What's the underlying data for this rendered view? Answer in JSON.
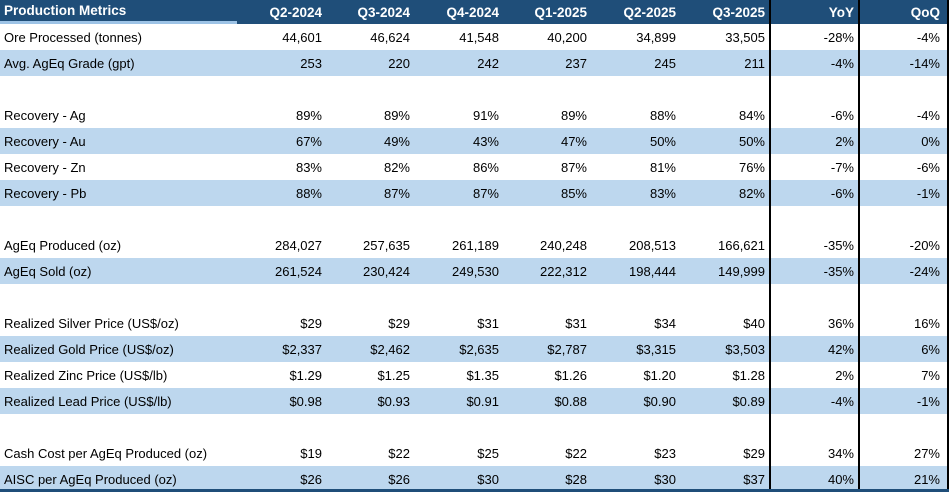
{
  "colors": {
    "header_bg": "#1F4E79",
    "header_text": "#FFFFFF",
    "band_fill": "#BDD7EE",
    "title_underline": "#9DC3E6",
    "divider": "#000000",
    "bottom_border": "#1F4E79"
  },
  "table": {
    "title": "Production Metrics",
    "columns": [
      "Q2-2024",
      "Q3-2024",
      "Q4-2024",
      "Q1-2025",
      "Q2-2025",
      "Q3-2025",
      "YoY",
      "QoQ"
    ],
    "rows": [
      {
        "label": "Ore Processed (tonnes)",
        "values": [
          "44,601",
          "46,624",
          "41,548",
          "40,200",
          "34,899",
          "33,505",
          "-28%",
          "-4%"
        ]
      },
      {
        "label": "Avg. AgEq Grade (gpt)",
        "values": [
          "253",
          "220",
          "242",
          "237",
          "245",
          "211",
          "-4%",
          "-14%"
        ]
      },
      {
        "label": "",
        "values": [
          "",
          "",
          "",
          "",
          "",
          "",
          "",
          ""
        ]
      },
      {
        "label": "Recovery - Ag",
        "values": [
          "89%",
          "89%",
          "91%",
          "89%",
          "88%",
          "84%",
          "-6%",
          "-4%"
        ]
      },
      {
        "label": "Recovery - Au",
        "values": [
          "67%",
          "49%",
          "43%",
          "47%",
          "50%",
          "50%",
          "2%",
          "0%"
        ]
      },
      {
        "label": "Recovery - Zn",
        "values": [
          "83%",
          "82%",
          "86%",
          "87%",
          "81%",
          "76%",
          "-7%",
          "-6%"
        ]
      },
      {
        "label": "Recovery - Pb",
        "values": [
          "88%",
          "87%",
          "87%",
          "85%",
          "83%",
          "82%",
          "-6%",
          "-1%"
        ]
      },
      {
        "label": "",
        "values": [
          "",
          "",
          "",
          "",
          "",
          "",
          "",
          ""
        ]
      },
      {
        "label": "AgEq Produced (oz)",
        "values": [
          "284,027",
          "257,635",
          "261,189",
          "240,248",
          "208,513",
          "166,621",
          "-35%",
          "-20%"
        ]
      },
      {
        "label": "AgEq Sold (oz)",
        "values": [
          "261,524",
          "230,424",
          "249,530",
          "222,312",
          "198,444",
          "149,999",
          "-35%",
          "-24%"
        ]
      },
      {
        "label": "",
        "values": [
          "",
          "",
          "",
          "",
          "",
          "",
          "",
          ""
        ]
      },
      {
        "label": "Realized Silver Price (US$/oz)",
        "values": [
          "$29",
          "$29",
          "$31",
          "$31",
          "$34",
          "$40",
          "36%",
          "16%"
        ]
      },
      {
        "label": "Realized Gold Price (US$/oz)",
        "values": [
          "$2,337",
          "$2,462",
          "$2,635",
          "$2,787",
          "$3,315",
          "$3,503",
          "42%",
          "6%"
        ]
      },
      {
        "label": "Realized Zinc Price (US$/lb)",
        "values": [
          "$1.29",
          "$1.25",
          "$1.35",
          "$1.26",
          "$1.20",
          "$1.28",
          "2%",
          "7%"
        ]
      },
      {
        "label": "Realized Lead Price (US$/lb)",
        "values": [
          "$0.98",
          "$0.93",
          "$0.91",
          "$0.88",
          "$0.90",
          "$0.89",
          "-4%",
          "-1%"
        ]
      },
      {
        "label": "",
        "values": [
          "",
          "",
          "",
          "",
          "",
          "",
          "",
          ""
        ]
      },
      {
        "label": "Cash Cost per AgEq Produced (oz)",
        "values": [
          "$19",
          "$22",
          "$25",
          "$22",
          "$23",
          "$29",
          "34%",
          "27%"
        ]
      },
      {
        "label": "AISC per AgEq Produced (oz)",
        "values": [
          "$26",
          "$26",
          "$30",
          "$28",
          "$30",
          "$37",
          "40%",
          "21%"
        ]
      }
    ]
  },
  "chart_data": {
    "type": "table",
    "title": "Production Metrics",
    "categories": [
      "Q2-2024",
      "Q3-2024",
      "Q4-2024",
      "Q1-2025",
      "Q2-2025",
      "Q3-2025"
    ],
    "series": [
      {
        "name": "Ore Processed (tonnes)",
        "values": [
          44601,
          46624,
          41548,
          40200,
          34899,
          33505
        ],
        "yoy_pct": -28,
        "qoq_pct": -4
      },
      {
        "name": "Avg. AgEq Grade (gpt)",
        "values": [
          253,
          220,
          242,
          237,
          245,
          211
        ],
        "yoy_pct": -4,
        "qoq_pct": -14
      },
      {
        "name": "Recovery - Ag (%)",
        "values": [
          89,
          89,
          91,
          89,
          88,
          84
        ],
        "yoy_pct": -6,
        "qoq_pct": -4
      },
      {
        "name": "Recovery - Au (%)",
        "values": [
          67,
          49,
          43,
          47,
          50,
          50
        ],
        "yoy_pct": 2,
        "qoq_pct": 0
      },
      {
        "name": "Recovery - Zn (%)",
        "values": [
          83,
          82,
          86,
          87,
          81,
          76
        ],
        "yoy_pct": -7,
        "qoq_pct": -6
      },
      {
        "name": "Recovery - Pb (%)",
        "values": [
          88,
          87,
          87,
          85,
          83,
          82
        ],
        "yoy_pct": -6,
        "qoq_pct": -1
      },
      {
        "name": "AgEq Produced (oz)",
        "values": [
          284027,
          257635,
          261189,
          240248,
          208513,
          166621
        ],
        "yoy_pct": -35,
        "qoq_pct": -20
      },
      {
        "name": "AgEq Sold (oz)",
        "values": [
          261524,
          230424,
          249530,
          222312,
          198444,
          149999
        ],
        "yoy_pct": -35,
        "qoq_pct": -24
      },
      {
        "name": "Realized Silver Price (US$/oz)",
        "values": [
          29,
          29,
          31,
          31,
          34,
          40
        ],
        "yoy_pct": 36,
        "qoq_pct": 16
      },
      {
        "name": "Realized Gold Price (US$/oz)",
        "values": [
          2337,
          2462,
          2635,
          2787,
          3315,
          3503
        ],
        "yoy_pct": 42,
        "qoq_pct": 6
      },
      {
        "name": "Realized Zinc Price (US$/lb)",
        "values": [
          1.29,
          1.25,
          1.35,
          1.26,
          1.2,
          1.28
        ],
        "yoy_pct": 2,
        "qoq_pct": 7
      },
      {
        "name": "Realized Lead Price (US$/lb)",
        "values": [
          0.98,
          0.93,
          0.91,
          0.88,
          0.9,
          0.89
        ],
        "yoy_pct": -4,
        "qoq_pct": -1
      },
      {
        "name": "Cash Cost per AgEq Produced (oz)",
        "values": [
          19,
          22,
          25,
          22,
          23,
          29
        ],
        "yoy_pct": 34,
        "qoq_pct": 27
      },
      {
        "name": "AISC per AgEq Produced (oz)",
        "values": [
          26,
          26,
          30,
          28,
          30,
          37
        ],
        "yoy_pct": 40,
        "qoq_pct": 21
      }
    ],
    "extra_columns": [
      "YoY",
      "QoQ"
    ],
    "legend_position": "none",
    "grid": false
  }
}
